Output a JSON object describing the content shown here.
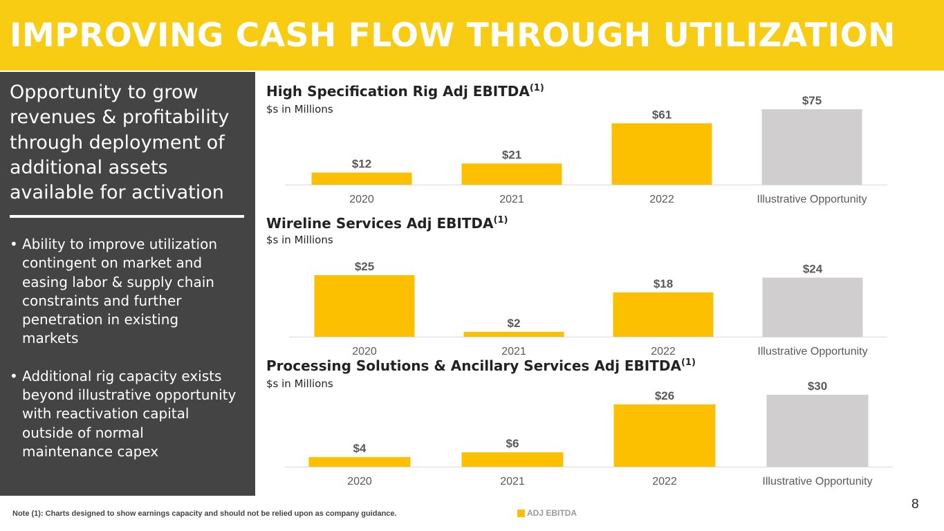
{
  "header": {
    "title": "IMPROVING CASH FLOW THROUGH UTILIZATION"
  },
  "panel": {
    "heading": "Opportunity to grow revenues & profitability through deployment of additional assets available for activation",
    "bullets": [
      "Ability to improve utilization contingent on market and easing labor & supply chain constraints and further penetration in existing markets",
      "Additional rig capacity exists beyond illustrative opportunity with reactivation capital outside of normal maintenance capex"
    ]
  },
  "colors": {
    "accent": "#fcc000",
    "illustrative": "#d0cece",
    "header": "#f9cc14",
    "panel": "#444444"
  },
  "chart_data": [
    {
      "type": "bar",
      "title": "High Specification Rig Adj EBITDA",
      "title_sup": "(1)",
      "subtitle": "$s in Millions",
      "categories": [
        "2020",
        "2021",
        "2022",
        "Illustrative Opportunity"
      ],
      "values": [
        12,
        21,
        61,
        75
      ],
      "labels": [
        "$12",
        "$21",
        "$61",
        "$75"
      ],
      "bar_colors": [
        "#fcc000",
        "#fcc000",
        "#fcc000",
        "#d0cece"
      ],
      "ylim": [
        0,
        75
      ]
    },
    {
      "type": "bar",
      "title": "Wireline Services Adj EBITDA",
      "title_sup": "(1)",
      "subtitle": "$s in Millions",
      "categories": [
        "2020",
        "2021",
        "2022",
        "Illustrative Opportunity"
      ],
      "values": [
        25,
        2,
        18,
        24
      ],
      "labels": [
        "$25",
        "$2",
        "$18",
        "$24"
      ],
      "bar_colors": [
        "#fcc000",
        "#fcc000",
        "#fcc000",
        "#d0cece"
      ],
      "ylim": [
        0,
        25
      ]
    },
    {
      "type": "bar",
      "title": "Processing Solutions & Ancillary Services Adj EBITDA",
      "title_sup": "(1)",
      "subtitle": "$s in Millions",
      "categories": [
        "2020",
        "2021",
        "2022",
        "Illustrative Opportunity"
      ],
      "values": [
        4,
        6,
        26,
        30
      ],
      "labels": [
        "$4",
        "$6",
        "$26",
        "$30"
      ],
      "bar_colors": [
        "#fcc000",
        "#fcc000",
        "#fcc000",
        "#d0cece"
      ],
      "ylim": [
        0,
        30
      ]
    }
  ],
  "footer": {
    "note": "Note (1): Charts designed to show earnings capacity and should not be relied upon as company guidance.",
    "legend_label": "ADJ EBITDA",
    "page_number": "8"
  }
}
